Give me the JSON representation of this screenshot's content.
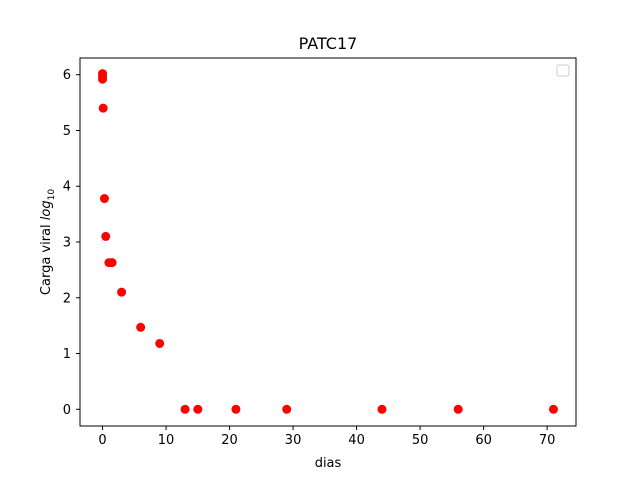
{
  "chart_data": {
    "type": "scatter",
    "title": "PATC17",
    "xlabel": "dias",
    "ylabel_prefix": "Carga viral ",
    "ylabel_log": "log",
    "ylabel_sub": "10",
    "xlim": [
      -3.55,
      74.55
    ],
    "ylim": [
      -0.3,
      6.3
    ],
    "xticks": [
      0,
      10,
      20,
      30,
      40,
      50,
      60,
      70
    ],
    "yticks": [
      0,
      1,
      2,
      3,
      4,
      5,
      6
    ],
    "grid": false,
    "legend": "top-right (empty)",
    "marker_color": "#ff0000",
    "series": [
      {
        "x": [
          0,
          0,
          0,
          0.1,
          0.3,
          0.5,
          1,
          1.5,
          3,
          6,
          9,
          13,
          15,
          21,
          29,
          44,
          56,
          71
        ],
        "y": [
          6.02,
          5.97,
          5.92,
          5.4,
          3.78,
          3.1,
          2.63,
          2.63,
          2.1,
          1.47,
          1.18,
          0,
          0,
          0,
          0,
          0,
          0,
          0
        ]
      }
    ]
  }
}
